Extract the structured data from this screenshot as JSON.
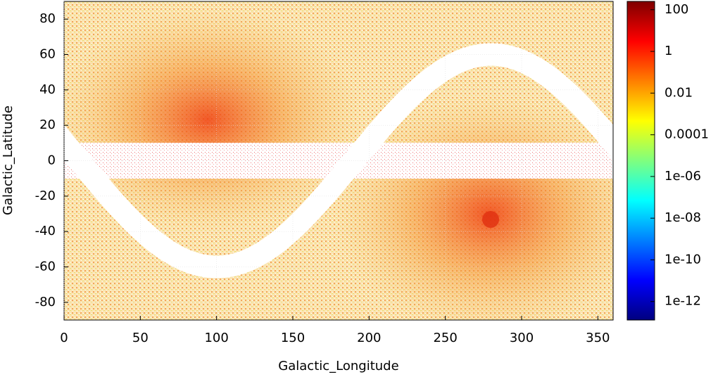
{
  "chart_data": {
    "type": "heatmap",
    "x_label": "Galactic_Longitude",
    "y_label": "Galactic_Latitude",
    "xlim": [
      0,
      360
    ],
    "xticks": [
      0,
      50,
      100,
      150,
      200,
      250,
      300,
      350
    ],
    "ylim": [
      -90,
      90
    ],
    "yticks": [
      -80,
      -60,
      -40,
      -20,
      0,
      20,
      40,
      60,
      80
    ],
    "grid": true,
    "colorbar": {
      "scale": "log",
      "lim": [
        1.3e-13,
        250
      ],
      "ticks": [
        100,
        1,
        0.01,
        0.0001,
        {
          "value": 1e-06,
          "label": "1e-06"
        },
        {
          "value": 1e-08,
          "label": "1e-08"
        },
        {
          "value": 1e-10,
          "label": "1e-10"
        },
        {
          "value": 1e-12,
          "label": "1e-12"
        }
      ],
      "colormap": [
        "#00007f",
        "#0000ff",
        "#007fff",
        "#00ffff",
        "#7fff7f",
        "#ffff00",
        "#ff7f00",
        "#ff0000",
        "#7f0000"
      ]
    }
  }
}
